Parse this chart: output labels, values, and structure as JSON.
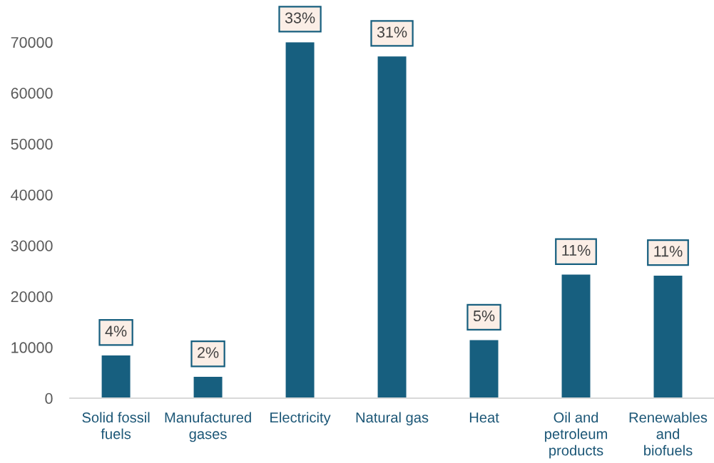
{
  "chart_data": {
    "type": "bar",
    "categories": [
      "Solid fossil fuels",
      "Manufactured gases",
      "Electricity",
      "Natural gas",
      "Heat",
      "Oil and petroleum products",
      "Renewables and biofuels"
    ],
    "values": [
      8400,
      4200,
      70000,
      67200,
      11400,
      24300,
      24100
    ],
    "annotations": [
      {
        "text": "4%",
        "x": "Solid fossil fuels",
        "y": 8400
      },
      {
        "text": "2%",
        "x": "Manufactured gases",
        "y": 4200
      },
      {
        "text": "33%",
        "x": "Electricity",
        "y": 70000
      },
      {
        "text": "31%",
        "x": "Natural gas",
        "y": 67200
      },
      {
        "text": "5%",
        "x": "Heat",
        "y": 11400
      },
      {
        "text": "11%",
        "x": "Oil and petroleum products",
        "y": 24300
      },
      {
        "text": "11%",
        "x": "Renewables and biofuels",
        "y": 24100
      }
    ],
    "color": "#175f7f",
    "ylim": [
      0,
      70000
    ],
    "yticks": [
      0,
      10000,
      20000,
      30000,
      40000,
      50000,
      60000,
      70000
    ]
  }
}
